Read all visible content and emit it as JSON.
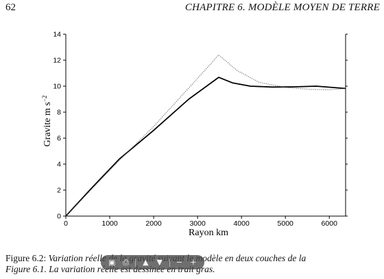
{
  "header": {
    "page_number": "62",
    "running_title": "CHAPITRE 6.  MODÈLE MOYEN DE TERRE"
  },
  "chart_data": {
    "type": "line",
    "xlabel": "Rayon km",
    "ylabel": "Gravite m s",
    "ylabel_exponent": "−2",
    "xlim": [
      0,
      6371
    ],
    "ylim": [
      0,
      14
    ],
    "x_ticks": [
      0,
      1000,
      2000,
      3000,
      4000,
      5000,
      6000
    ],
    "y_ticks": [
      0,
      2,
      4,
      6,
      8,
      10,
      12,
      14
    ],
    "grid": false,
    "series": [
      {
        "style": "solid-bold",
        "color": "#000000",
        "x": [
          0,
          600,
          1221,
          2000,
          2800,
          3480,
          3800,
          4200,
          4700,
          5200,
          5701,
          6000,
          6371
        ],
        "y": [
          0,
          2.2,
          4.4,
          6.6,
          9.0,
          10.68,
          10.25,
          10.0,
          9.93,
          9.95,
          10.0,
          9.92,
          9.82
        ]
      },
      {
        "style": "dotted",
        "color": "#555555",
        "x": [
          0,
          1221,
          2000,
          3000,
          3480,
          3900,
          4400,
          5000,
          5600,
          6000,
          6371
        ],
        "y": [
          0,
          4.3,
          6.9,
          10.6,
          12.4,
          11.2,
          10.3,
          9.9,
          9.75,
          9.72,
          9.82
        ]
      }
    ]
  },
  "caption": {
    "line1_label": "Figure 6.2:",
    "line1_text": " Variation réelle de la gravité suivant le modèle en deux couches de la",
    "line2_text": "Figure 6.1. La variation réelle est dessinée en trait gras."
  },
  "viewer_toolbar": {
    "buttons": [
      {
        "icon": "save-icon",
        "glyph": "▣"
      },
      {
        "icon": "print-icon",
        "glyph": "⎙"
      },
      {
        "icon": "page-up-icon",
        "glyph": "▲"
      },
      {
        "icon": "page-down-icon",
        "glyph": "▼"
      },
      {
        "icon": "zoom-out-icon",
        "glyph": "−"
      },
      {
        "icon": "zoom-in-icon",
        "glyph": "+"
      }
    ]
  }
}
